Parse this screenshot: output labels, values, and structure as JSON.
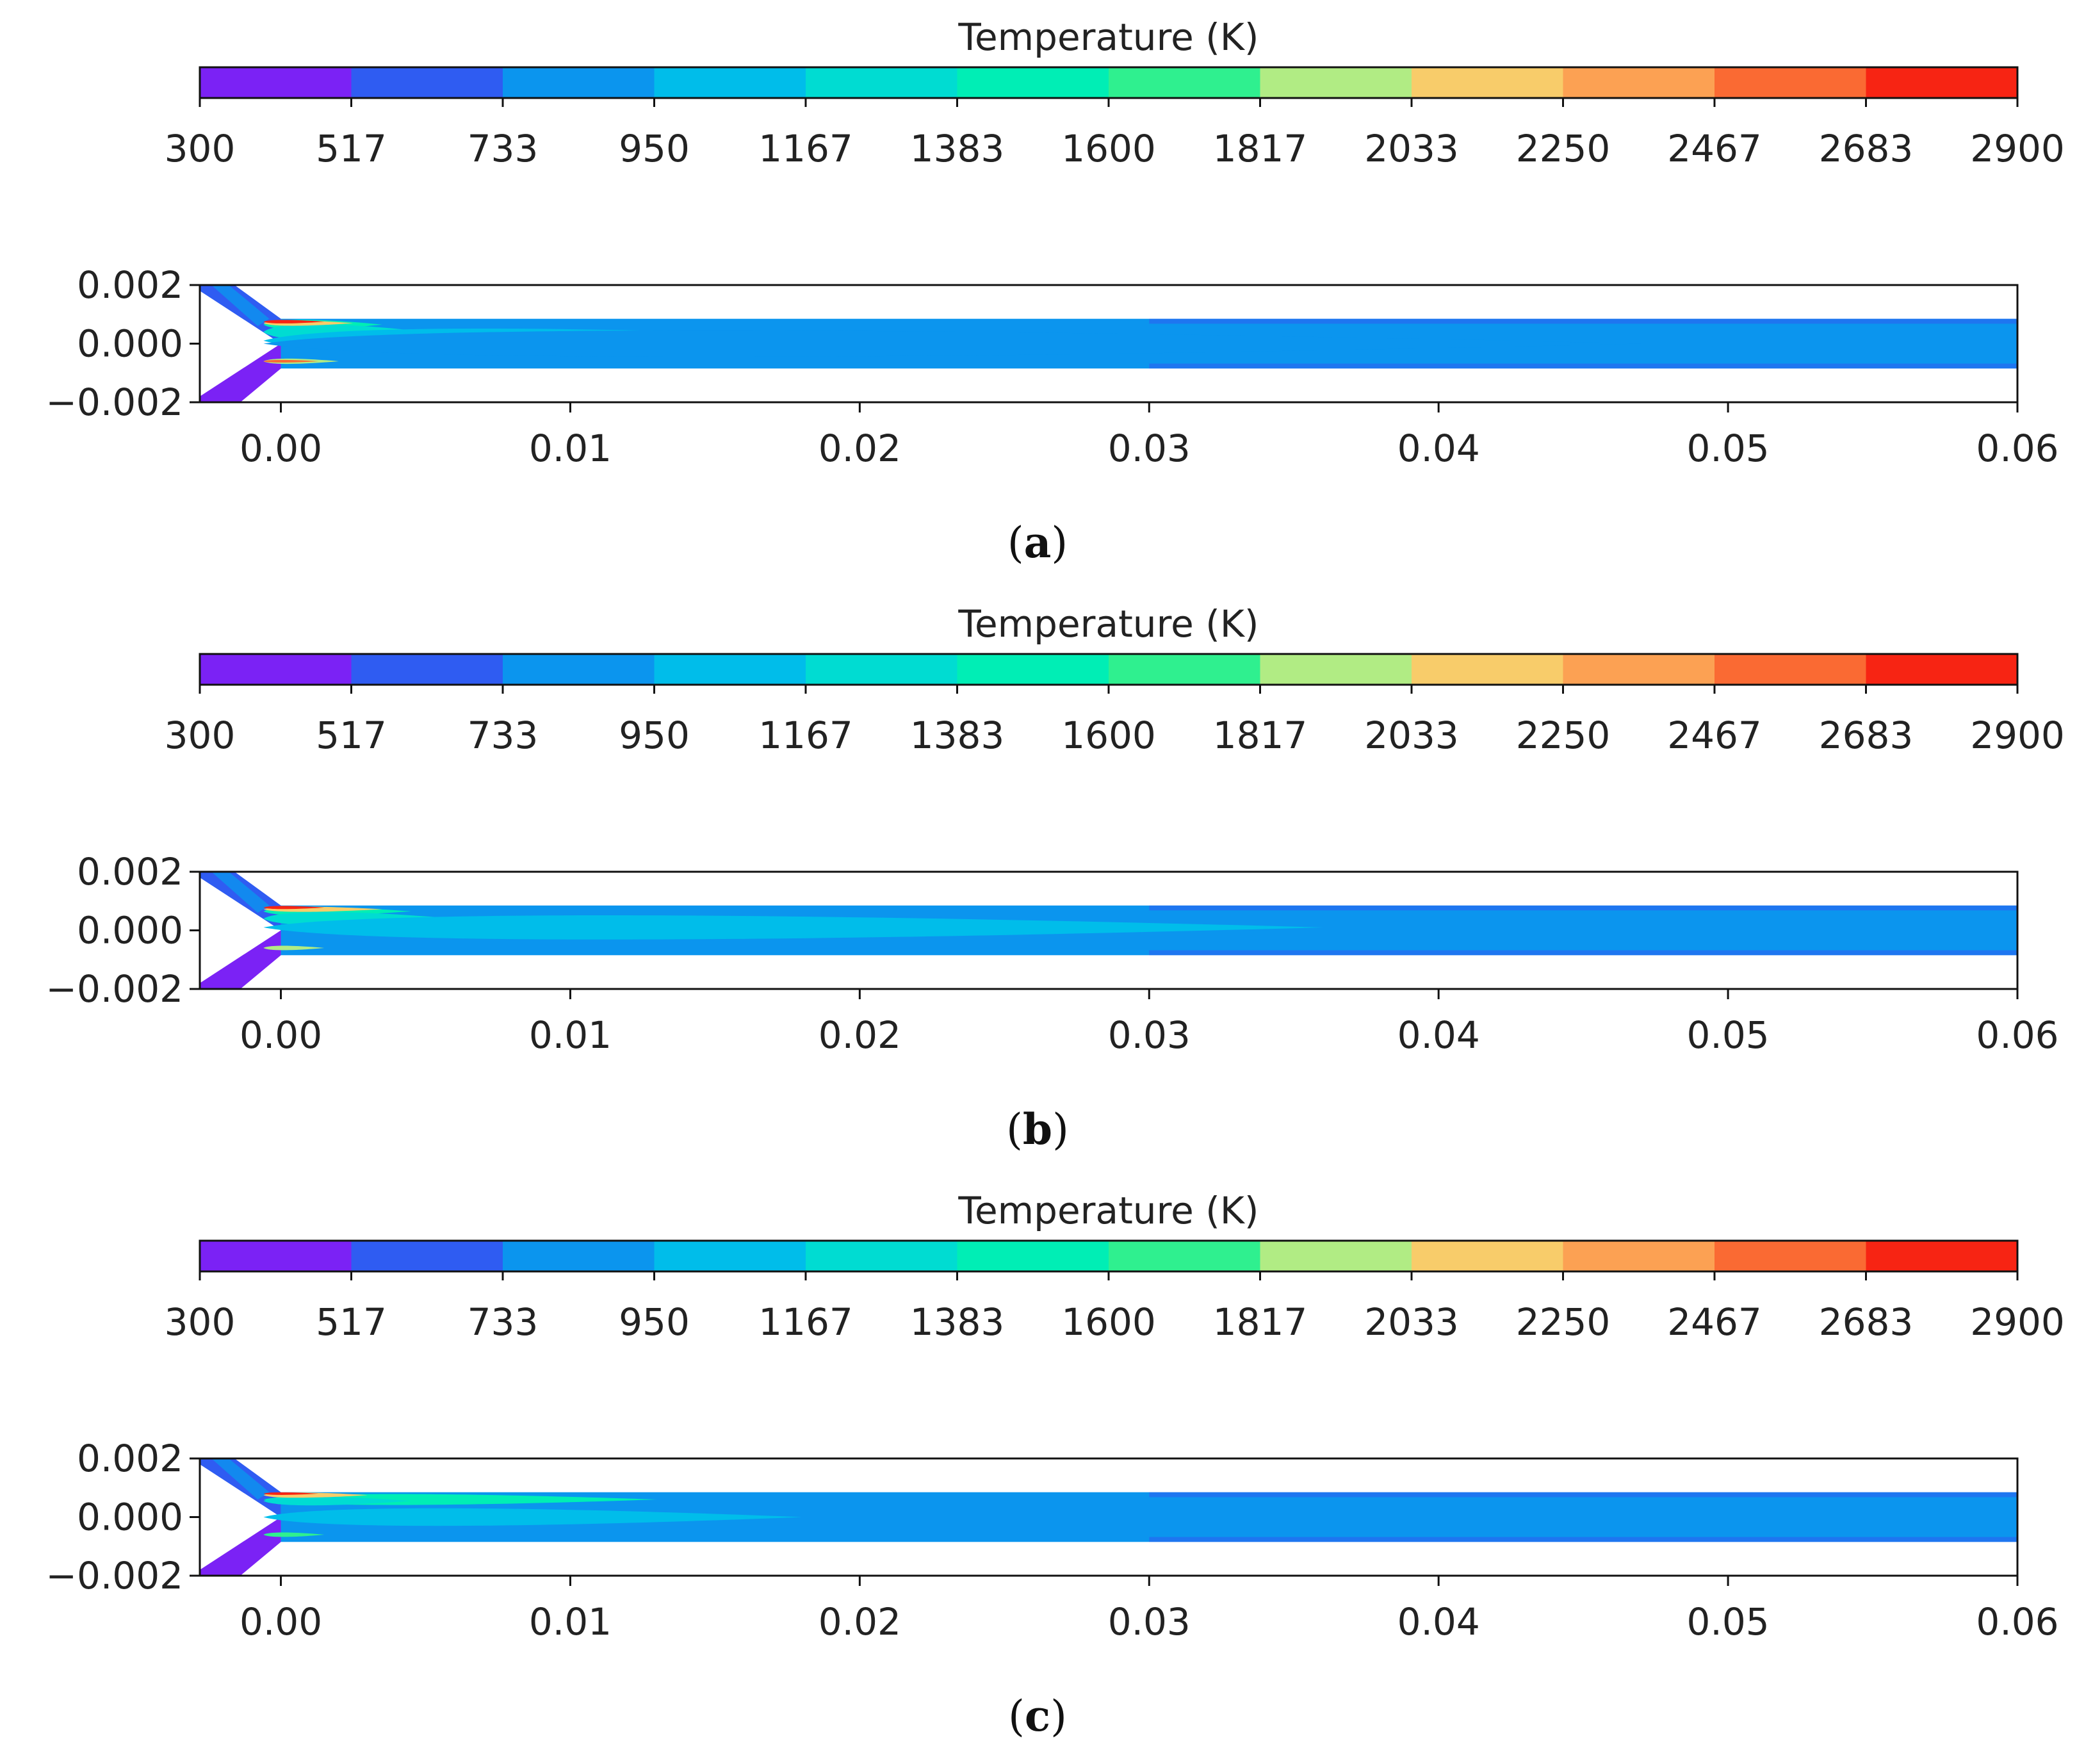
{
  "colorbar": {
    "label": "Temperature (K)",
    "ticks": [
      "300",
      "517",
      "733",
      "950",
      "1167",
      "1383",
      "1600",
      "1817",
      "2033",
      "2250",
      "2467",
      "2683",
      "2900"
    ],
    "colors": [
      "#7b22f5",
      "#2f5cf2",
      "#0b95ee",
      "#00bdea",
      "#00dcd2",
      "#00eeb5",
      "#2ff08f",
      "#b1ec84",
      "#f8cc6a",
      "#fca153",
      "#fa6a33",
      "#f72413"
    ]
  },
  "chart_data": [
    {
      "type": "heatmap",
      "panel_label": "a",
      "x_ticks": [
        "0.00",
        "0.01",
        "0.02",
        "0.03",
        "0.04",
        "0.05",
        "0.06"
      ],
      "y_ticks": [
        "0.002",
        "0.000",
        "−0.002"
      ],
      "xlim": [
        -0.0028,
        0.06
      ],
      "ylim": [
        -0.002,
        0.002
      ],
      "colorbar_range": [
        300,
        2900
      ],
      "channel_half_width": 0.00085,
      "regions": [
        {
          "band": 5,
          "x_end": 0.0035,
          "y_center": 0.00065,
          "half_width": 0.00022
        },
        {
          "band": 4,
          "x_end": 0.005,
          "y_center": 0.0004,
          "half_width": 0.00035
        },
        {
          "band": 3,
          "x_end": 0.023,
          "y_center": 0.0001,
          "half_width": 0.00055
        },
        {
          "band": 2,
          "x_end": 0.047,
          "y_center": 0.0,
          "half_width": 0.0006
        },
        {
          "band": 8,
          "x_end": 0.0025,
          "y_center": 0.0007,
          "half_width": 0.00012
        },
        {
          "band": 11,
          "x_end": 0.0015,
          "y_center": 0.00075,
          "half_width": 8e-05
        },
        {
          "band": 7,
          "x_end": 0.002,
          "y_center": -0.0006,
          "half_width": 0.00012
        },
        {
          "band": 10,
          "x_end": 0.0013,
          "y_center": -0.0006,
          "half_width": 6e-05
        }
      ]
    },
    {
      "type": "heatmap",
      "panel_label": "b",
      "x_ticks": [
        "0.00",
        "0.01",
        "0.02",
        "0.03",
        "0.04",
        "0.05",
        "0.06"
      ],
      "y_ticks": [
        "0.002",
        "0.000",
        "−0.002"
      ],
      "xlim": [
        -0.0028,
        0.06
      ],
      "ylim": [
        -0.002,
        0.002
      ],
      "colorbar_range": [
        300,
        2900
      ],
      "channel_half_width": 0.00085,
      "regions": [
        {
          "band": 5,
          "x_end": 0.0045,
          "y_center": 0.00065,
          "half_width": 0.0002
        },
        {
          "band": 4,
          "x_end": 0.006,
          "y_center": 0.0004,
          "half_width": 0.0003
        },
        {
          "band": 3,
          "x_end": 0.036,
          "y_center": 0.0001,
          "half_width": 0.00055
        },
        {
          "band": 8,
          "x_end": 0.0035,
          "y_center": 0.00072,
          "half_width": 0.00012
        },
        {
          "band": 11,
          "x_end": 0.0015,
          "y_center": 0.00078,
          "half_width": 7e-05
        },
        {
          "band": 7,
          "x_end": 0.0015,
          "y_center": -0.0006,
          "half_width": 0.0001
        }
      ]
    },
    {
      "type": "heatmap",
      "panel_label": "c",
      "x_ticks": [
        "0.00",
        "0.01",
        "0.02",
        "0.03",
        "0.04",
        "0.05",
        "0.06"
      ],
      "y_ticks": [
        "0.002",
        "0.000",
        "−0.002"
      ],
      "xlim": [
        -0.0028,
        0.06
      ],
      "ylim": [
        -0.002,
        0.002
      ],
      "colorbar_range": [
        300,
        2900
      ],
      "channel_half_width": 0.00085,
      "regions": [
        {
          "band": 5,
          "x_end": 0.013,
          "y_center": 0.0006,
          "half_width": 0.00025
        },
        {
          "band": 4,
          "x_end": 0.0045,
          "y_center": 0.00055,
          "half_width": 0.0002
        },
        {
          "band": 3,
          "x_end": 0.018,
          "y_center": 0.0,
          "half_width": 0.0004
        },
        {
          "band": 8,
          "x_end": 0.003,
          "y_center": 0.00075,
          "half_width": 0.00012
        },
        {
          "band": 11,
          "x_end": 0.0013,
          "y_center": 0.0008,
          "half_width": 6e-05
        },
        {
          "band": 6,
          "x_end": 0.0015,
          "y_center": -0.0006,
          "half_width": 0.0001
        }
      ]
    }
  ]
}
